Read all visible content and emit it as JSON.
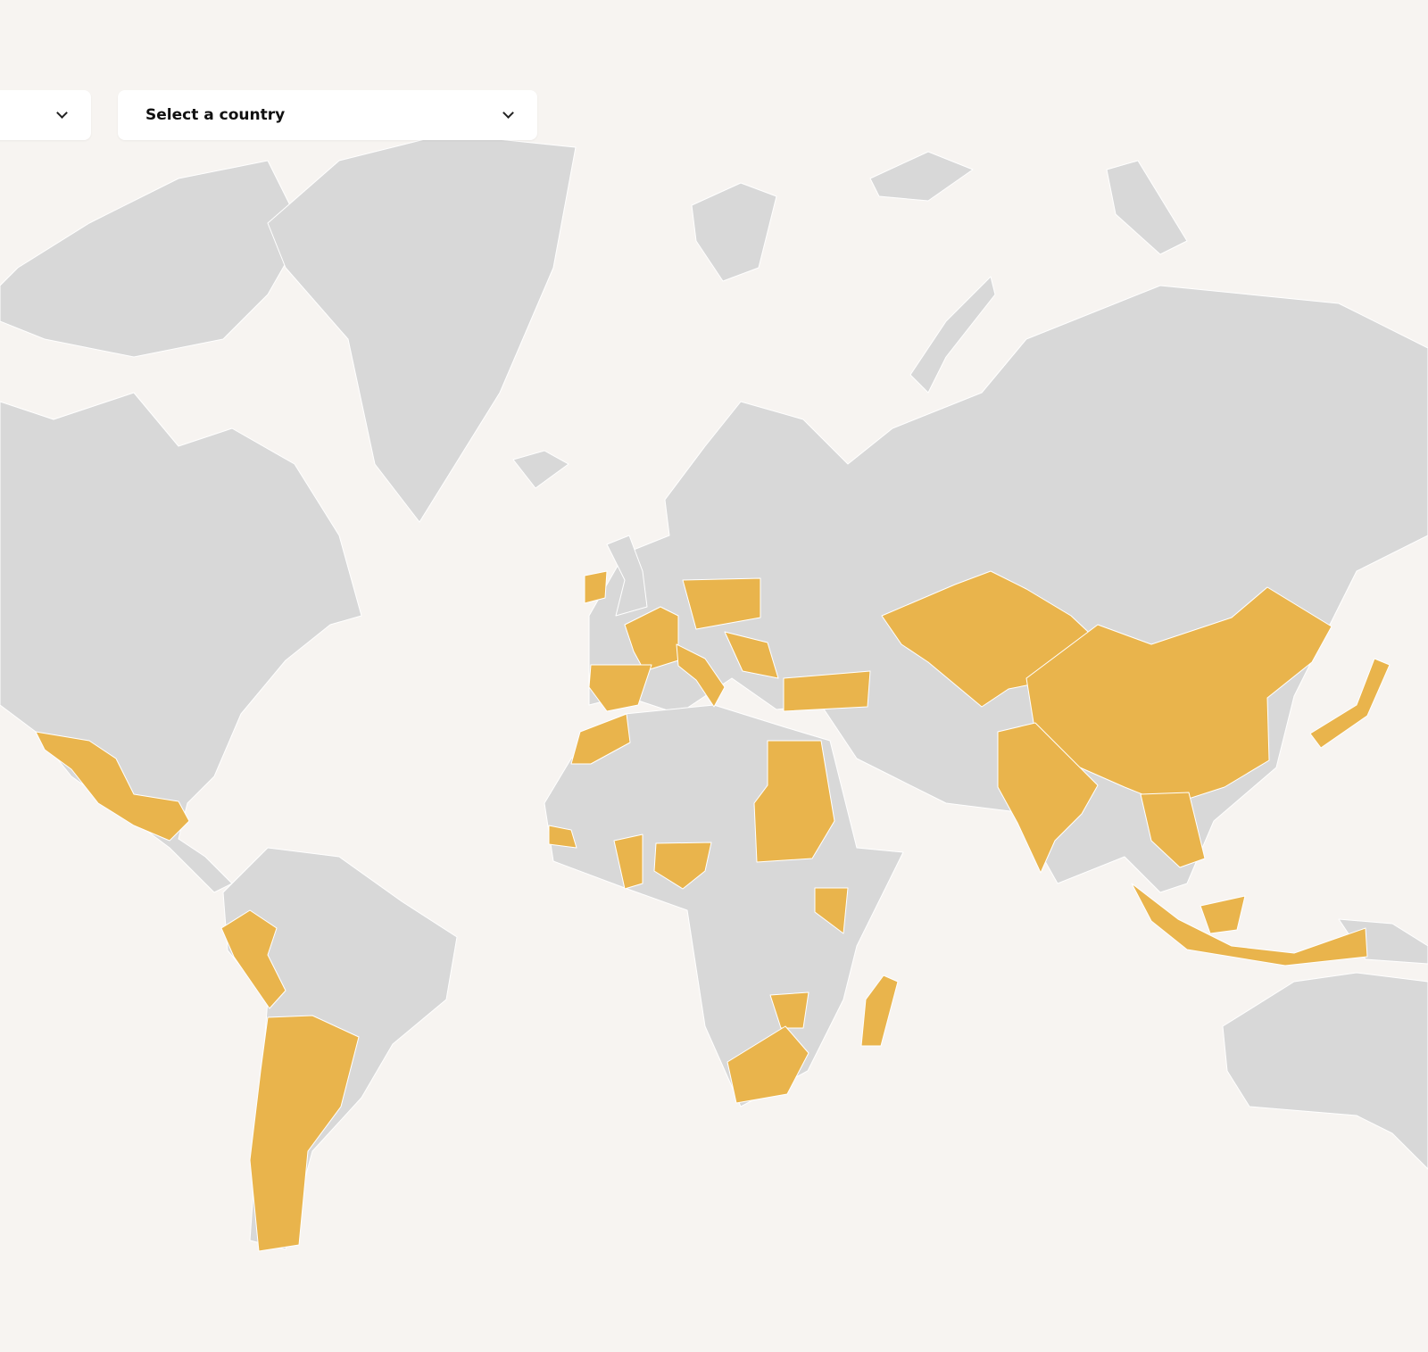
{
  "filters": {
    "first_dropdown": {
      "value": ""
    },
    "country_dropdown": {
      "placeholder": "Select a country"
    }
  },
  "map": {
    "colors": {
      "background": "#f7f4f1",
      "land": "#d8d8d8",
      "highlighted": "#e9b44c",
      "border": "#ffffff"
    }
  }
}
